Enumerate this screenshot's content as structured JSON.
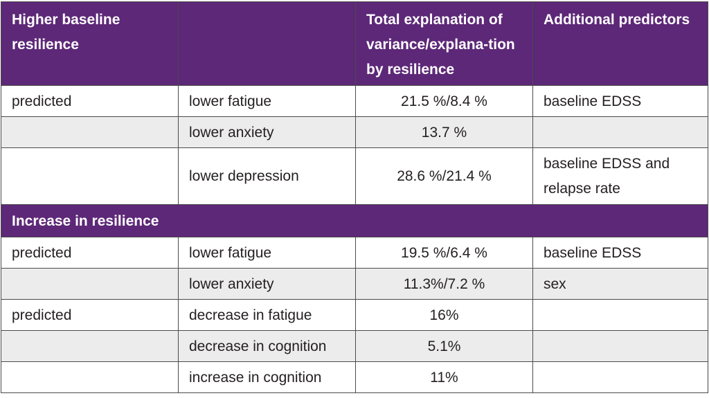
{
  "table": {
    "header": {
      "col1": "Higher baseline resilience",
      "col2": "",
      "col3": "Total explanation of variance/explana-tion by resilience",
      "col4": "Additional predictors"
    },
    "baseline_rows": [
      {
        "c1": "predicted",
        "c2": "lower fatigue",
        "c3": "21.5 %/8.4 %",
        "c4": "baseline EDSS"
      },
      {
        "c1": "",
        "c2": "lower anxiety",
        "c3": "13.7 %",
        "c4": ""
      },
      {
        "c1": "",
        "c2": "lower depression",
        "c3": "28.6 %/21.4 %",
        "c4": "baseline EDSS and relapse rate"
      }
    ],
    "section2_title": "Increase in resilience",
    "increase_rows": [
      {
        "c1": "predicted",
        "c2": "lower fatigue",
        "c3": "19.5 %/6.4 %",
        "c4": "baseline EDSS"
      },
      {
        "c1": "",
        "c2": "lower anxiety",
        "c3": "11.3%/7.2 %",
        "c4": "sex"
      },
      {
        "c1": "predicted",
        "c2": "decrease in fatigue",
        "c3": "16%",
        "c4": ""
      },
      {
        "c1": "",
        "c2": "decrease in cognition",
        "c3": "5.1%",
        "c4": ""
      },
      {
        "c1": "",
        "c2": "increase in cognition",
        "c3": "11%",
        "c4": ""
      }
    ]
  },
  "colors": {
    "header_bg": "#5d2878",
    "header_text": "#ffffff",
    "stripe_bg": "#ececec",
    "border": "#4a4a4a"
  }
}
